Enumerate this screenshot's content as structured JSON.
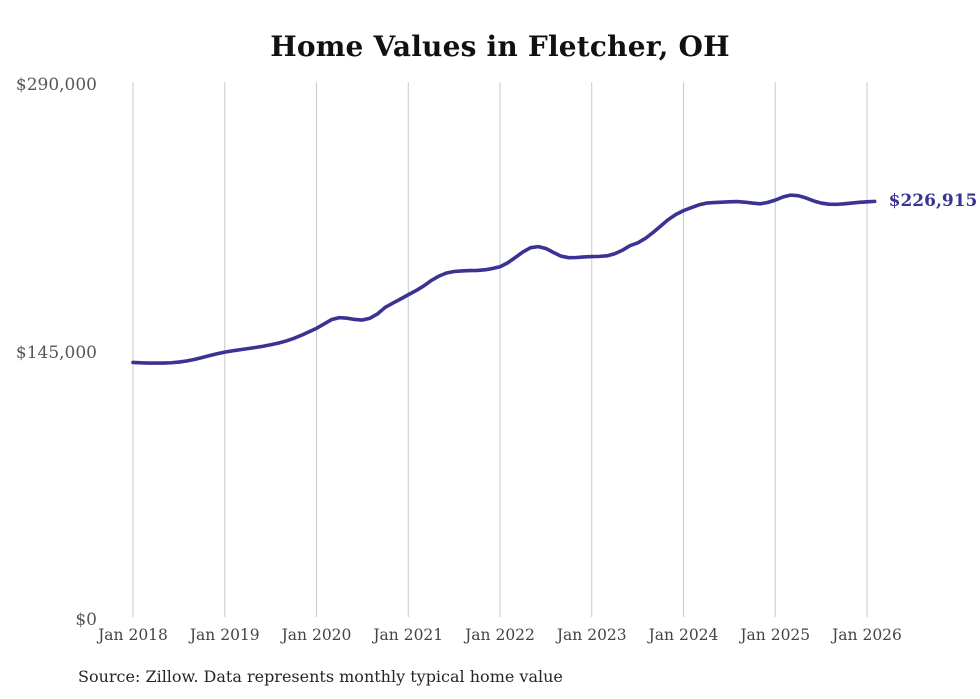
{
  "page": {
    "title": "Home Values in Fletcher, OH",
    "source_note": "Source: Zillow. Data represents monthly typical home value"
  },
  "chart_data": {
    "type": "line",
    "title": "Home Values in Fletcher, OH",
    "series_name": "Typical home value",
    "unit": "USD",
    "frequency": "monthly",
    "x_start": "Jan 2018",
    "x_end": "Feb 2026",
    "x_tick_labels": [
      "Jan 2018",
      "Jan 2019",
      "Jan 2020",
      "Jan 2021",
      "Jan 2022",
      "Jan 2023",
      "Jan 2024",
      "Jan 2025",
      "Jan 2026"
    ],
    "months_per_tick": 12,
    "y_ticks": [
      {
        "label": "$0",
        "value": 0
      },
      {
        "label": "$145,000",
        "value": 145000
      },
      {
        "label": "$290,000",
        "value": 290000
      }
    ],
    "y_min": 0,
    "y_max": 290000,
    "grid": "vertical-only",
    "legend": "none",
    "line_color": "#3b3394",
    "grid_color": "#c9c9c9",
    "end_label": "$226,915",
    "end_value": 226915,
    "values": [
      139600,
      139400,
      139300,
      139250,
      139300,
      139450,
      139800,
      140400,
      141200,
      142200,
      143300,
      144300,
      145200,
      145900,
      146500,
      147100,
      147700,
      148400,
      149200,
      150100,
      151200,
      152600,
      154300,
      156200,
      158100,
      160500,
      162900,
      163900,
      163600,
      162900,
      162600,
      163600,
      166000,
      169500,
      171800,
      174000,
      176300,
      178500,
      181000,
      184000,
      186400,
      188100,
      188900,
      189200,
      189400,
      189500,
      189800,
      190500,
      191500,
      193600,
      196500,
      199500,
      201800,
      202400,
      201400,
      199200,
      197200,
      196400,
      196500,
      196800,
      197000,
      197100,
      197400,
      198500,
      200400,
      202900,
      204400,
      206800,
      210000,
      213500,
      217000,
      219800,
      221900,
      223500,
      225000,
      226000,
      226300,
      226500,
      226700,
      226800,
      226500,
      226000,
      225600,
      226300,
      227600,
      229300,
      230300,
      230000,
      228800,
      227200,
      226000,
      225400,
      225300,
      225600,
      226000,
      226400,
      226700,
      226915
    ]
  }
}
